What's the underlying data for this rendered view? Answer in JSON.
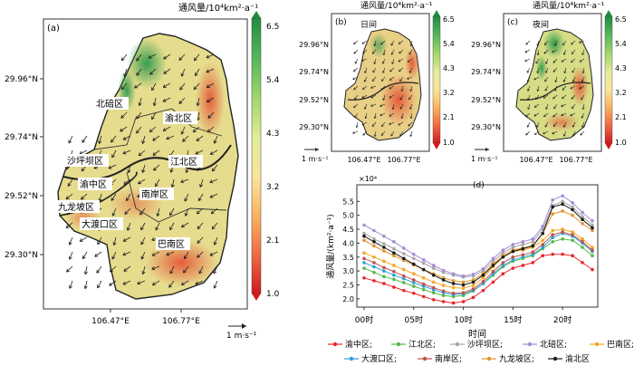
{
  "colorbar": {
    "title": "通风量/10⁴km²·a⁻¹",
    "ticks": [
      "6.5",
      "5.4",
      "4.3",
      "3.2",
      "2.1",
      "1.0"
    ],
    "colors": [
      "#1e8e3e",
      "#58b85c",
      "#a6d96a",
      "#e3ec9b",
      "#fbe39a",
      "#f9b35f",
      "#ef6a43",
      "#cf1b1f"
    ]
  },
  "panel_a": {
    "label": "(a)",
    "lat_ticks": [
      "29.96°N",
      "29.74°N",
      "29.52°N",
      "29.30°N"
    ],
    "lon_ticks": [
      "106.47°E",
      "106.77°E"
    ],
    "scale": "1 m·s⁻¹",
    "districts": [
      "北碚区",
      "渝北区",
      "沙坪坝区",
      "江北区",
      "渝中区",
      "南岸区",
      "九龙坡区",
      "大渡口区",
      "巴南区"
    ]
  },
  "panel_b": {
    "label": "(b)",
    "period": "日间",
    "lat_ticks": [
      "29.96°N",
      "29.74°N",
      "29.52°N",
      "29.30°N"
    ],
    "lon_ticks": [
      "106.47°E",
      "106.77°E"
    ],
    "scale": "1 m·s⁻¹"
  },
  "panel_c": {
    "label": "(c)",
    "period": "夜间",
    "lat_ticks": [
      "29.96°N",
      "29.74°N",
      "29.52°N",
      "29.30°N"
    ],
    "lon_ticks": [
      "106.47°E",
      "106.77°E"
    ],
    "scale": "1 m·s⁻¹"
  },
  "chart_data": {
    "type": "line",
    "label": "(d)",
    "multiplier": "×10⁴",
    "ylabel": "通风量/(km²·a⁻¹)",
    "xlabel": "时间",
    "x": [
      0,
      1,
      2,
      3,
      4,
      5,
      6,
      7,
      8,
      9,
      10,
      11,
      12,
      13,
      14,
      15,
      16,
      17,
      18,
      19,
      20,
      21,
      22,
      23
    ],
    "xtick_values": [
      0,
      5,
      10,
      15,
      20
    ],
    "xtick_labels": [
      "00时",
      "05时",
      "10时",
      "15时",
      "20时"
    ],
    "ylim": [
      1.8,
      5.9
    ],
    "yticks": [
      "2.0",
      "2.5",
      "3.0",
      "3.5",
      "4.0",
      "4.5",
      "5.0",
      "5.5"
    ],
    "grid": false,
    "legend_position": "bottom",
    "series": [
      {
        "name": "渝中区;",
        "color": "#e8262b",
        "values": [
          2.75,
          2.65,
          2.55,
          2.42,
          2.3,
          2.2,
          2.08,
          1.97,
          1.9,
          1.85,
          1.9,
          2.05,
          2.3,
          2.6,
          2.9,
          3.1,
          3.2,
          3.3,
          3.55,
          3.6,
          3.6,
          3.55,
          3.3,
          3.05
        ]
      },
      {
        "name": "江北区;",
        "color": "#54b848",
        "values": [
          3.1,
          2.95,
          2.8,
          2.7,
          2.58,
          2.45,
          2.33,
          2.22,
          2.12,
          2.08,
          2.12,
          2.28,
          2.55,
          2.85,
          3.15,
          3.35,
          3.45,
          3.55,
          3.8,
          4.05,
          4.15,
          4.1,
          3.85,
          3.55
        ]
      },
      {
        "name": "沙坪坝区;",
        "color": "#a6a6a6",
        "values": [
          4.35,
          4.15,
          3.98,
          3.8,
          3.62,
          3.45,
          3.28,
          3.1,
          2.95,
          2.85,
          2.78,
          2.82,
          3.0,
          3.35,
          3.65,
          3.85,
          3.95,
          4.05,
          4.5,
          5.35,
          5.5,
          5.3,
          4.95,
          4.65
        ]
      },
      {
        "name": "北碚区;",
        "color": "#a58cd7",
        "values": [
          4.65,
          4.45,
          4.25,
          4.05,
          3.82,
          3.6,
          3.4,
          3.2,
          3.02,
          2.9,
          2.82,
          2.88,
          3.08,
          3.45,
          3.75,
          3.95,
          4.05,
          4.15,
          4.6,
          5.55,
          5.7,
          5.45,
          5.1,
          4.8
        ]
      },
      {
        "name": "巴南区;",
        "color": "#f5a623",
        "values": [
          3.65,
          3.5,
          3.35,
          3.2,
          3.05,
          2.9,
          2.75,
          2.6,
          2.48,
          2.4,
          2.38,
          2.48,
          2.75,
          3.15,
          3.5,
          3.7,
          3.75,
          3.85,
          4.1,
          4.45,
          4.5,
          4.4,
          4.15,
          3.85
        ]
      },
      {
        "name": "大渡口区;",
        "color": "#2ea0d8",
        "values": [
          3.3,
          3.15,
          3.0,
          2.85,
          2.72,
          2.58,
          2.45,
          2.33,
          2.22,
          2.15,
          2.18,
          2.3,
          2.55,
          2.9,
          3.2,
          3.4,
          3.5,
          3.6,
          3.85,
          4.2,
          4.35,
          4.25,
          4.0,
          3.7
        ]
      },
      {
        "name": "南岸区;",
        "color": "#c0504d",
        "values": [
          3.45,
          3.3,
          3.12,
          2.98,
          2.82,
          2.68,
          2.53,
          2.4,
          2.28,
          2.2,
          2.22,
          2.35,
          2.62,
          2.98,
          3.3,
          3.5,
          3.58,
          3.68,
          3.95,
          4.3,
          4.4,
          4.3,
          4.05,
          3.75
        ]
      },
      {
        "name": "九龙坡区;",
        "color": "#e2932b",
        "values": [
          4.1,
          3.9,
          3.72,
          3.55,
          3.38,
          3.22,
          3.05,
          2.9,
          2.75,
          2.65,
          2.6,
          2.68,
          2.9,
          3.25,
          3.55,
          3.75,
          3.82,
          3.92,
          4.35,
          5.05,
          5.15,
          5.0,
          4.7,
          4.45
        ]
      },
      {
        "name": "渝北区",
        "color": "#1a1a1a",
        "values": [
          4.25,
          4.05,
          3.85,
          3.65,
          3.45,
          3.25,
          3.05,
          2.85,
          2.68,
          2.55,
          2.5,
          2.6,
          2.85,
          3.2,
          3.5,
          3.7,
          3.8,
          3.9,
          4.35,
          5.3,
          5.4,
          5.2,
          4.85,
          4.55
        ]
      }
    ]
  }
}
